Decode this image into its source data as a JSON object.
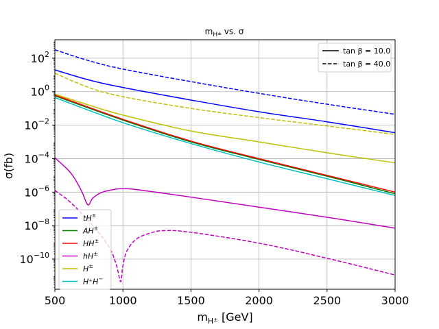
{
  "chart_data": {
    "type": "line",
    "title": "m_H± vs. σ",
    "title_parts": {
      "base": "m",
      "sub": "H",
      "subsup": "±",
      "rest": " vs. σ"
    },
    "xlabel": "m_H± [GeV]",
    "xlabel_parts": {
      "base": "m",
      "sub": "H",
      "subsup": "±",
      "rest": " [GeV]"
    },
    "ylabel": "σ(fb)",
    "yscale": "log",
    "xlim": [
      500,
      3000
    ],
    "ylim_exp": [
      -11.8,
      3.1
    ],
    "xticks": [
      500,
      1000,
      1500,
      2000,
      2500,
      3000
    ],
    "yticks_exp": [
      -10,
      -8,
      -6,
      -4,
      -2,
      0,
      2
    ],
    "ytick_base": "10",
    "grid": true,
    "series_legend": {
      "placement": "lower-left",
      "entries": [
        {
          "key": "tH",
          "base": "tH",
          "sup": "±",
          "color": "#0000ff"
        },
        {
          "key": "AH",
          "base": "AH",
          "sup": "±",
          "color": "#008000"
        },
        {
          "key": "HH",
          "base": "HH",
          "sup": "±",
          "color": "#ff0000"
        },
        {
          "key": "hH",
          "base": "hH",
          "sup": "±",
          "color": "#bf00bf"
        },
        {
          "key": "H",
          "base": "H",
          "sup": "±",
          "color": "#bfbf00"
        },
        {
          "key": "HpHm",
          "base": "H⁺H",
          "sup": "−",
          "color": "#00bfbf"
        }
      ]
    },
    "style_legend": {
      "placement": "upper-right",
      "entries": [
        {
          "label": "tan β = 10.0",
          "text": "tan β = 10.0",
          "dash": "solid"
        },
        {
          "label": "tan β = 40.0",
          "text": "tan β = 40.0",
          "dash": "dashed"
        }
      ]
    },
    "series": [
      {
        "name": "tH± tanβ=10",
        "color": "#0000ff",
        "dash": "solid",
        "x": [
          500,
          750,
          1000,
          1500,
          2000,
          2500,
          3000
        ],
        "log10_y": [
          1.3,
          0.7,
          0.25,
          -0.5,
          -1.2,
          -1.8,
          -2.45
        ]
      },
      {
        "name": "tH± tanβ=40",
        "color": "#0000ff",
        "dash": "dashed",
        "x": [
          500,
          750,
          1000,
          1500,
          2000,
          2500,
          3000
        ],
        "log10_y": [
          2.5,
          1.85,
          1.35,
          0.6,
          -0.1,
          -0.75,
          -1.35
        ]
      },
      {
        "name": "AH± tanβ=10",
        "color": "#008000",
        "dash": "solid",
        "x": [
          500,
          1000,
          1500,
          2000,
          2500,
          3000
        ],
        "log10_y": [
          -0.25,
          -1.7,
          -3.0,
          -4.05,
          -5.05,
          -6.1
        ]
      },
      {
        "name": "HH± tanβ=10",
        "color": "#ff0000",
        "dash": "solid",
        "x": [
          500,
          1000,
          1500,
          2000,
          2500,
          3000
        ],
        "log10_y": [
          -0.2,
          -1.65,
          -2.95,
          -4.0,
          -5.0,
          -6.0
        ]
      },
      {
        "name": "H± tanβ=10",
        "color": "#bfbf00",
        "dash": "solid",
        "x": [
          500,
          750,
          1000,
          1500,
          2000,
          2500,
          3000
        ],
        "log10_y": [
          -0.15,
          -0.8,
          -1.4,
          -2.35,
          -3.0,
          -3.65,
          -4.25
        ]
      },
      {
        "name": "H± tanβ=40",
        "color": "#bfbf00",
        "dash": "dashed",
        "x": [
          500,
          750,
          1000,
          1500,
          2000,
          2500,
          3000
        ],
        "log10_y": [
          1.1,
          0.25,
          -0.3,
          -1.0,
          -1.55,
          -2.05,
          -2.55
        ]
      },
      {
        "name": "H+H- tanβ=10",
        "color": "#00bfbf",
        "dash": "solid",
        "x": [
          500,
          1000,
          1500,
          2000,
          2500,
          3000
        ],
        "log10_y": [
          -0.35,
          -1.85,
          -3.1,
          -4.2,
          -5.2,
          -6.2
        ]
      },
      {
        "name": "hH± tanβ=10",
        "color": "#bf00bf",
        "dash": "solid",
        "x": [
          500,
          600,
          650,
          700,
          730,
          750,
          780,
          850,
          950,
          1000,
          1100,
          1500,
          2000,
          2500,
          3000
        ],
        "log10_y": [
          -3.95,
          -4.7,
          -5.25,
          -6.0,
          -6.6,
          -6.75,
          -6.35,
          -6.0,
          -5.82,
          -5.8,
          -5.85,
          -6.3,
          -6.9,
          -7.5,
          -8.15
        ]
      },
      {
        "name": "hH± tanβ=40",
        "color": "#bf00bf",
        "dash": "dashed",
        "x": [
          500,
          600,
          700,
          800,
          900,
          950,
          980,
          990,
          1000,
          1030,
          1100,
          1200,
          1300,
          1500,
          2000,
          2500,
          3000
        ],
        "log10_y": [
          -5.9,
          -6.5,
          -7.3,
          -8.2,
          -9.3,
          -10.3,
          -11.3,
          -11.1,
          -10.4,
          -9.5,
          -8.8,
          -8.45,
          -8.3,
          -8.4,
          -9.05,
          -9.95,
          -10.95
        ]
      }
    ]
  }
}
